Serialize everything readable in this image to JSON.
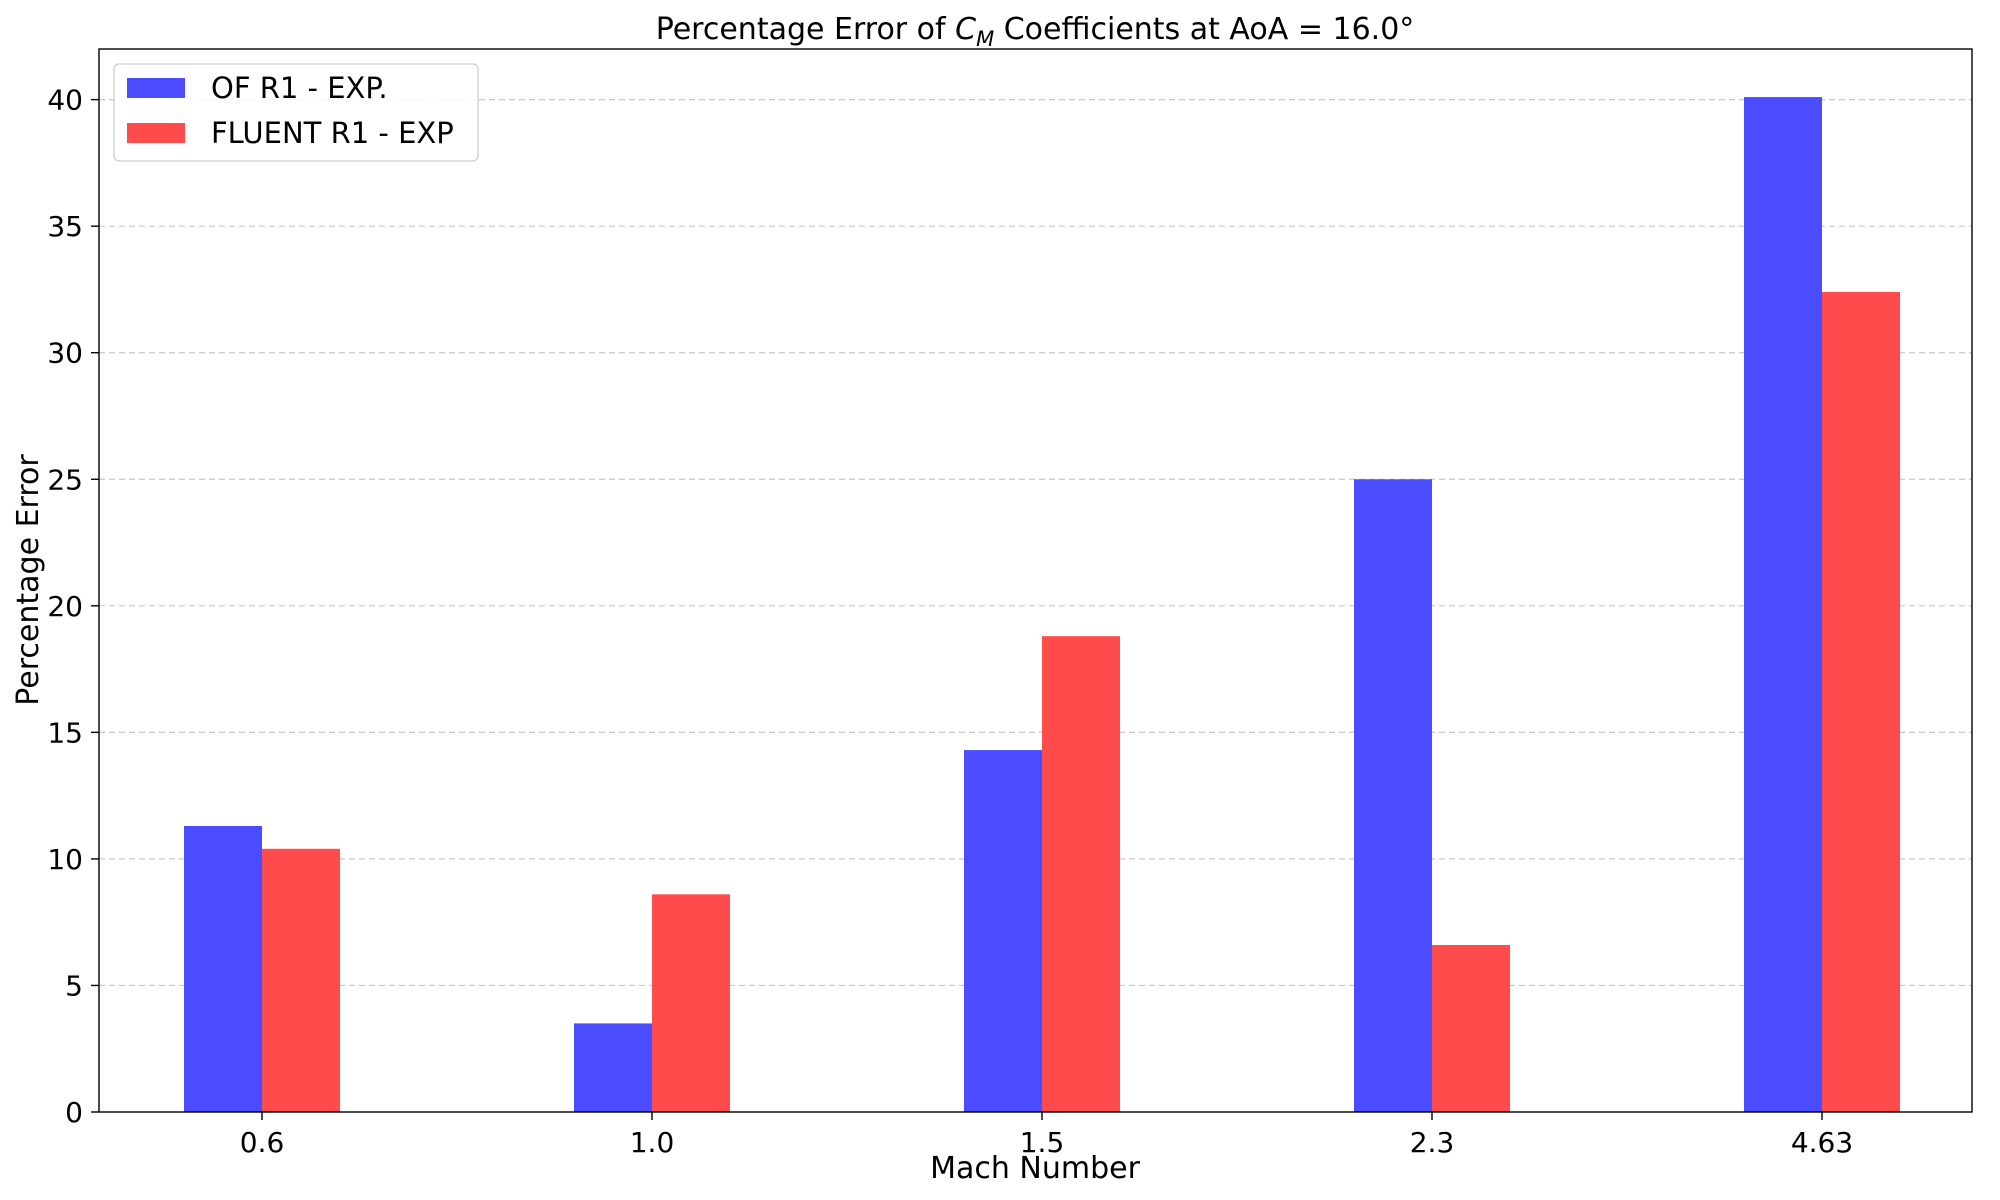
{
  "chart_data": {
    "type": "bar",
    "title": {
      "prefix": "Percentage Error of ",
      "symbol": "C",
      "subscript": "M",
      "suffix": " Coefficients at AoA = 16.0°"
    },
    "xlabel": "Mach Number",
    "ylabel": "Percentage Error",
    "categories": [
      "0.6",
      "1.0",
      "1.5",
      "2.3",
      "4.63"
    ],
    "ylim": [
      0,
      42
    ],
    "yticks": [
      0,
      5,
      10,
      15,
      20,
      25,
      30,
      35,
      40
    ],
    "grid": "y-dashed",
    "legend_position": "top-left",
    "series": [
      {
        "name": "OF R1 - EXP.",
        "color": "#4b4bff",
        "values": [
          11.3,
          3.5,
          14.3,
          25.0,
          40.1
        ]
      },
      {
        "name": "FLUENT R1 - EXP",
        "color": "#ff4b4b",
        "values": [
          10.4,
          8.6,
          18.8,
          6.6,
          32.4
        ]
      }
    ]
  }
}
